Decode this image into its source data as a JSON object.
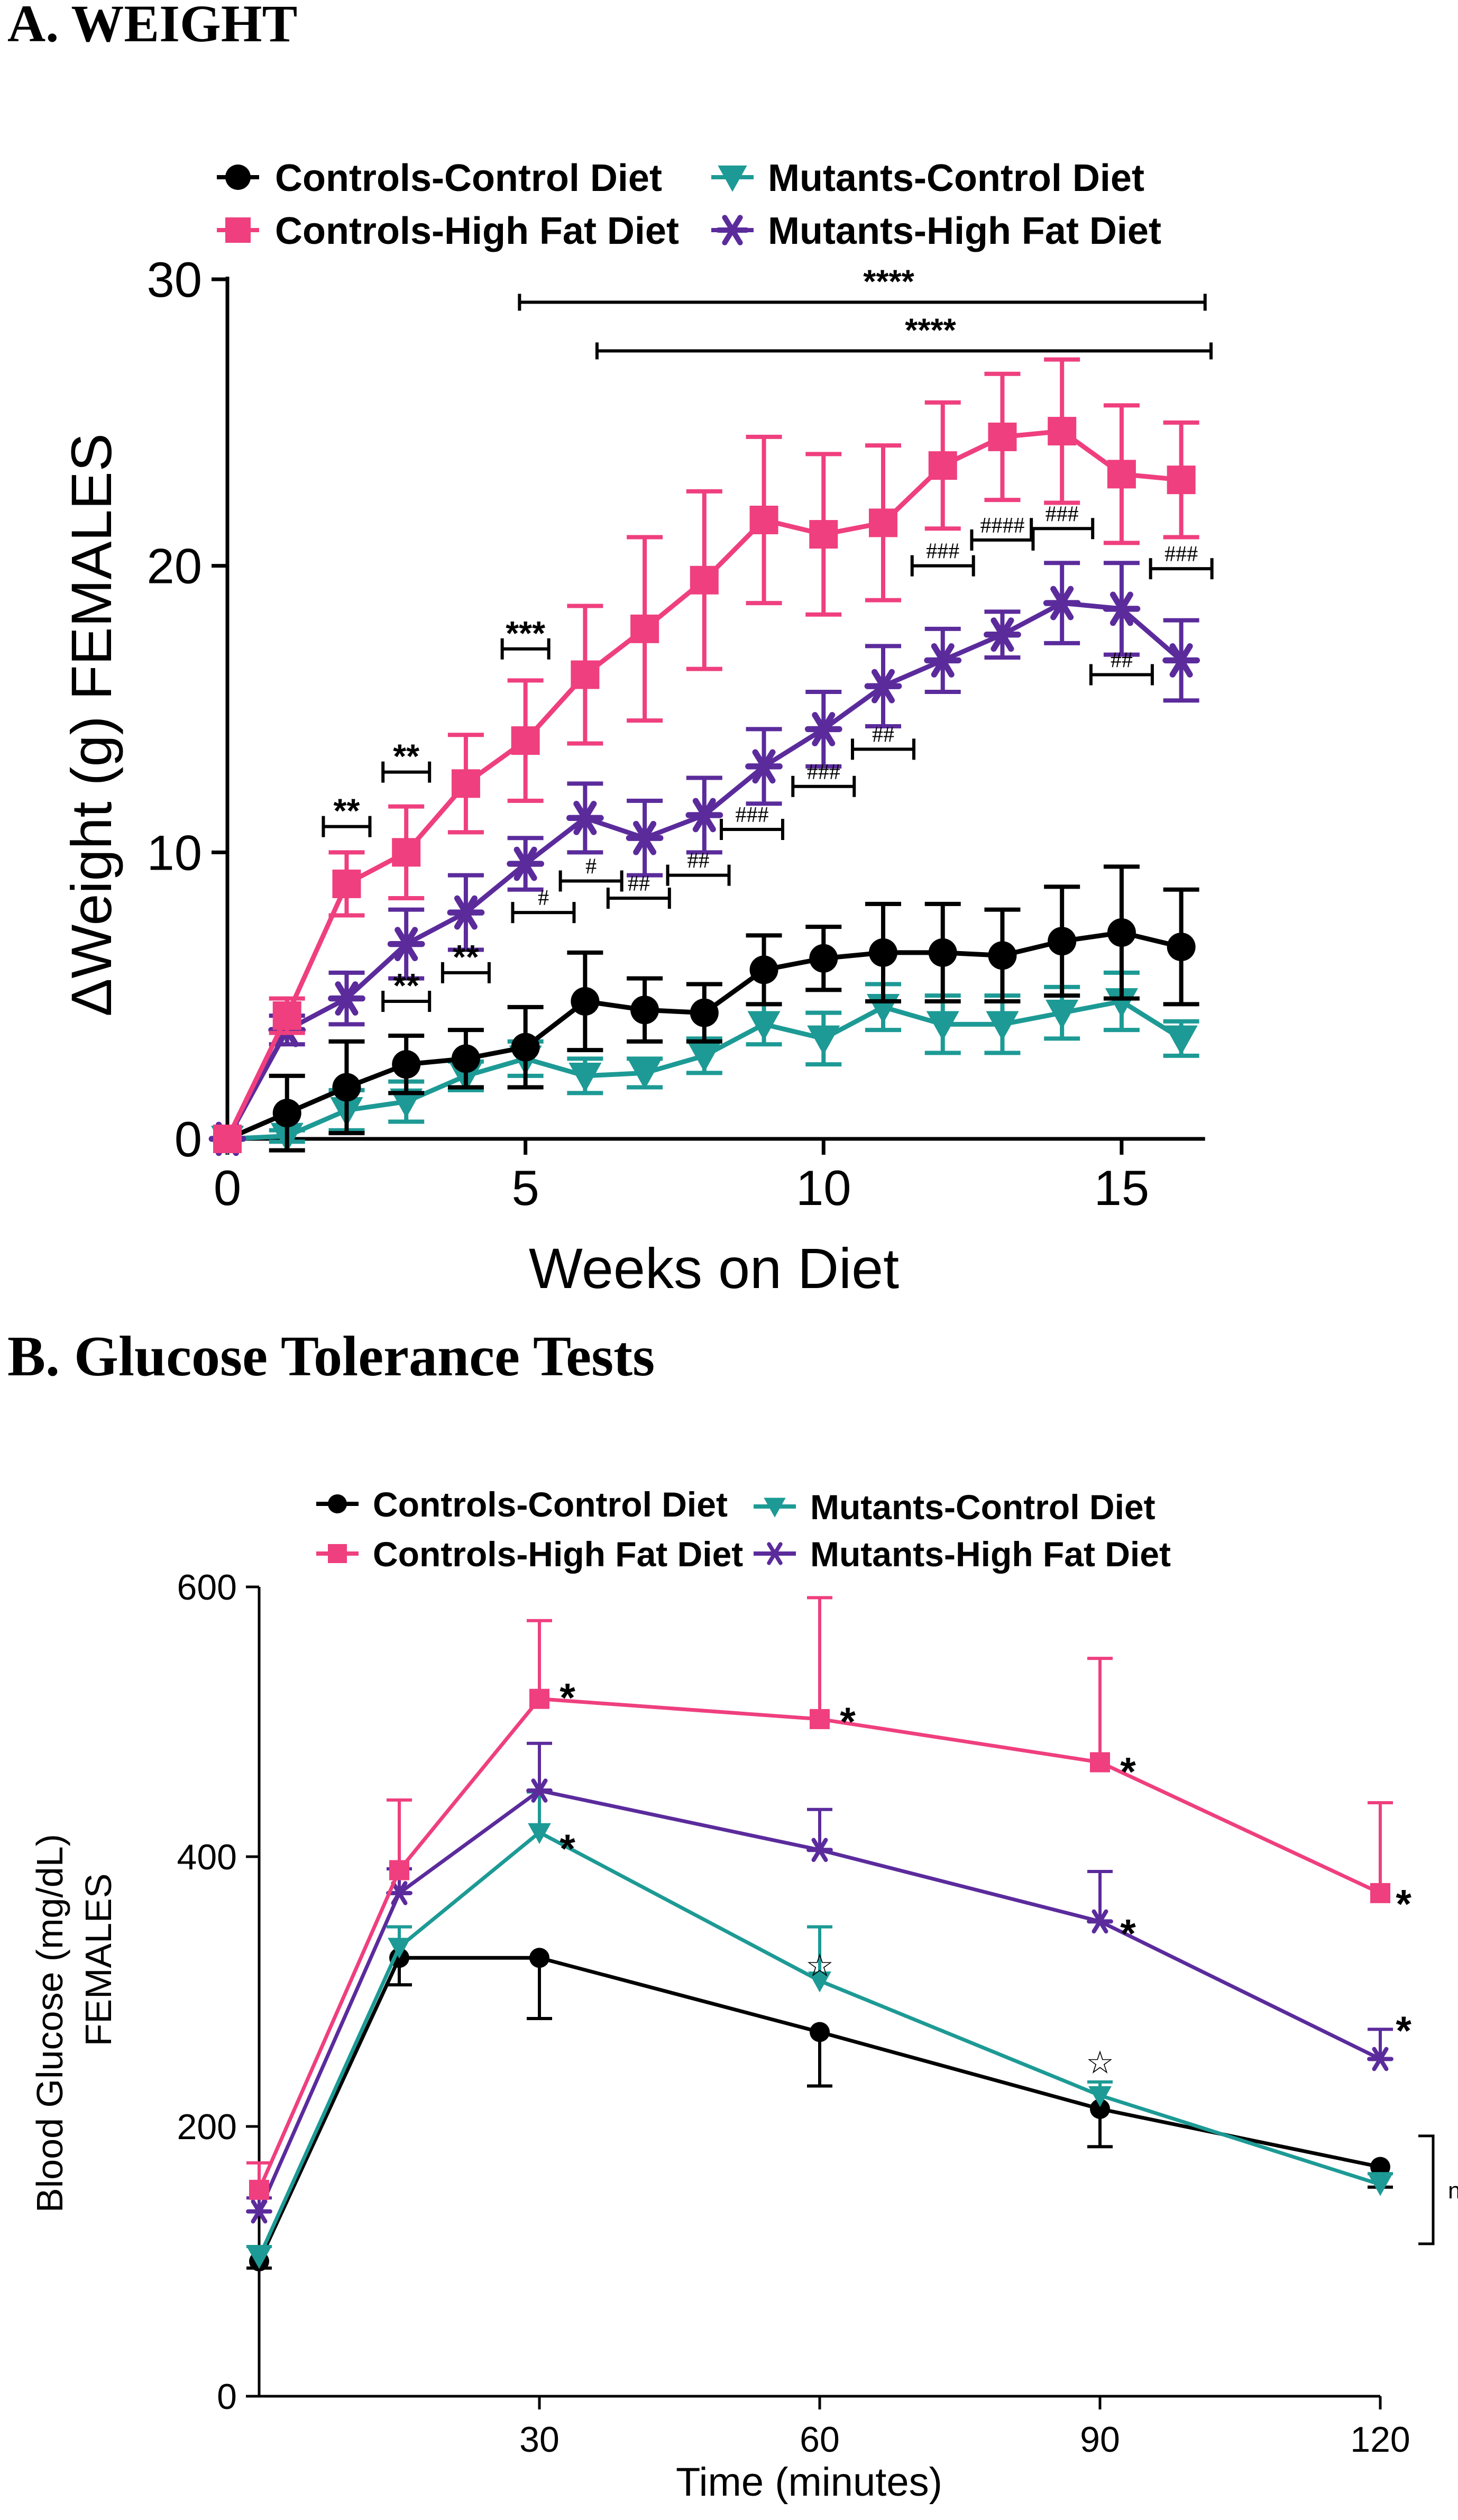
{
  "panels": {
    "a": {
      "title": "A. WEIGHT"
    },
    "b": {
      "title": "B. Glucose Tolerance Tests"
    }
  },
  "colors": {
    "controls_control": "#000000",
    "controls_hfd": "#ef3f7e",
    "mutants_control": "#1d9a95",
    "mutants_hfd": "#5b2b9c"
  },
  "chart_data": [
    {
      "type": "line",
      "title": "A. WEIGHT",
      "xlabel": "Weeks on Diet",
      "ylabel": "ΔWeight (g) FEMALES",
      "xlim": [
        0,
        16.5
      ],
      "ylim": [
        0,
        30
      ],
      "xticks": [
        0,
        5,
        10,
        15
      ],
      "yticks": [
        0,
        10,
        20,
        30
      ],
      "legend": [
        "Controls-Control Diet",
        "Mutants-Control Diet",
        "Controls-High Fat Diet",
        "Mutants-High Fat Diet"
      ],
      "x": [
        0,
        1,
        2,
        3,
        4,
        5,
        6,
        7,
        8,
        9,
        10,
        11,
        12,
        13,
        14,
        15,
        16
      ],
      "series": [
        {
          "name": "Controls-Control Diet",
          "marker": "circle",
          "values": [
            0,
            0.9,
            1.8,
            2.6,
            2.8,
            3.2,
            4.8,
            4.5,
            4.4,
            5.9,
            6.3,
            6.5,
            6.5,
            6.4,
            6.9,
            7.2,
            6.7
          ],
          "errors": [
            0,
            1.3,
            1.6,
            1.0,
            1.0,
            1.4,
            1.7,
            1.1,
            1.0,
            1.2,
            1.1,
            1.7,
            1.7,
            1.6,
            1.9,
            2.3,
            2.0
          ]
        },
        {
          "name": "Mutants-Control Diet",
          "marker": "triangle-down",
          "values": [
            0,
            0.1,
            1.0,
            1.3,
            2.2,
            2.8,
            2.2,
            2.3,
            2.9,
            4.0,
            3.5,
            4.6,
            4.0,
            4.0,
            4.4,
            4.8,
            3.5
          ],
          "errors": [
            0,
            0.2,
            0.7,
            0.7,
            0.5,
            0.6,
            0.6,
            0.5,
            0.6,
            0.7,
            0.9,
            0.8,
            1.0,
            1.0,
            0.9,
            1.0,
            0.6
          ]
        },
        {
          "name": "Controls-High Fat Diet",
          "marker": "square",
          "values": [
            0,
            4.3,
            8.9,
            10.0,
            12.4,
            13.9,
            16.2,
            17.8,
            19.5,
            21.6,
            21.1,
            21.5,
            23.5,
            24.5,
            24.7,
            23.2,
            23.0
          ],
          "errors": [
            0,
            0.6,
            1.1,
            1.6,
            1.7,
            2.1,
            2.4,
            3.2,
            3.1,
            2.9,
            2.8,
            2.7,
            2.2,
            2.2,
            2.5,
            2.4,
            2.0
          ]
        },
        {
          "name": "Mutants-High Fat Diet",
          "marker": "asterisk",
          "values": [
            0,
            3.8,
            4.9,
            6.8,
            7.9,
            9.6,
            11.2,
            10.5,
            11.3,
            13.0,
            14.3,
            15.8,
            16.7,
            17.6,
            18.7,
            18.5,
            16.7
          ],
          "errors": [
            0,
            0.5,
            0.9,
            1.2,
            1.3,
            0.9,
            1.2,
            1.3,
            1.3,
            1.3,
            1.3,
            1.4,
            1.1,
            0.8,
            1.4,
            1.6,
            1.4
          ]
        }
      ],
      "significance_bars": [
        {
          "label": "****",
          "x_start": 4.9,
          "x_end": 16.4,
          "y": 29.2
        },
        {
          "label": "****",
          "x_start": 6.2,
          "x_end": 16.5,
          "y": 27.5
        }
      ],
      "annotations": [
        {
          "label": "**",
          "x": 2.0,
          "y": 10.9
        },
        {
          "label": "**",
          "x": 3.0,
          "y": 12.8
        },
        {
          "label": "***",
          "x": 5.0,
          "y": 17.1
        },
        {
          "label": "**",
          "x": 3.0,
          "y": 4.8
        },
        {
          "label": "**",
          "x": 4.0,
          "y": 5.8
        },
        {
          "label": "#",
          "x": 5.3,
          "y": 7.9
        },
        {
          "label": "#",
          "x": 6.1,
          "y": 9.0
        },
        {
          "label": "##",
          "x": 6.9,
          "y": 8.4
        },
        {
          "label": "##",
          "x": 7.9,
          "y": 9.2
        },
        {
          "label": "###",
          "x": 8.8,
          "y": 10.8
        },
        {
          "label": "###",
          "x": 10.0,
          "y": 12.3
        },
        {
          "label": "##",
          "x": 11.0,
          "y": 13.6
        },
        {
          "label": "###",
          "x": 12.0,
          "y": 20.0
        },
        {
          "label": "####",
          "x": 13.0,
          "y": 20.9
        },
        {
          "label": "###",
          "x": 14.0,
          "y": 21.3
        },
        {
          "label": "##",
          "x": 15.0,
          "y": 16.2
        },
        {
          "label": "###",
          "x": 16.0,
          "y": 19.9
        }
      ]
    },
    {
      "type": "line",
      "title": "B. Glucose Tolerance Tests",
      "xlabel": "Time (minutes)",
      "ylabel": "Blood Glucose (mg/dL) FEMALES",
      "xlim": [
        0,
        120
      ],
      "ylim": [
        0,
        600
      ],
      "xticks": [
        30,
        60,
        90,
        120
      ],
      "yticks": [
        0,
        200,
        400,
        600
      ],
      "legend": [
        "Controls-Control Diet",
        "Mutants-Control Diet",
        "Controls-High Fat Diet",
        "Mutants-High Fat Diet"
      ],
      "x": [
        0,
        15,
        30,
        60,
        90,
        120
      ],
      "series": [
        {
          "name": "Controls-Control Diet",
          "marker": "circle",
          "values": [
            100,
            325,
            325,
            270,
            213,
            170
          ],
          "errors": [
            5,
            20,
            45,
            40,
            28,
            15
          ]
        },
        {
          "name": "Mutants-Control Diet",
          "marker": "triangle-down",
          "values": [
            103,
            333,
            418,
            308,
            223,
            157
          ],
          "errors": [
            8,
            15,
            30,
            40,
            10,
            8
          ]
        },
        {
          "name": "Controls-High Fat Diet",
          "marker": "square",
          "values": [
            153,
            390,
            517,
            502,
            470,
            373
          ],
          "errors": [
            20,
            52,
            58,
            90,
            77,
            67
          ]
        },
        {
          "name": "Mutants-High Fat Diet",
          "marker": "asterisk",
          "values": [
            137,
            373,
            449,
            405,
            352,
            250
          ],
          "errors": [
            10,
            18,
            35,
            30,
            37,
            22
          ]
        }
      ],
      "annotations": [
        {
          "label": "*",
          "x": 33,
          "y": 525
        },
        {
          "label": "*",
          "x": 63,
          "y": 507
        },
        {
          "label": "*",
          "x": 93,
          "y": 470
        },
        {
          "label": "*",
          "x": 122.5,
          "y": 372
        },
        {
          "label": "*",
          "x": 33,
          "y": 413
        },
        {
          "label": "*",
          "x": 93,
          "y": 350
        },
        {
          "label": "*",
          "x": 122.5,
          "y": 278
        },
        {
          "label": "☆",
          "x": 60,
          "y": 320
        },
        {
          "label": "☆",
          "x": 90,
          "y": 248
        }
      ],
      "bracket": {
        "label": "ns",
        "y_start": 113,
        "y_end": 193
      }
    }
  ]
}
